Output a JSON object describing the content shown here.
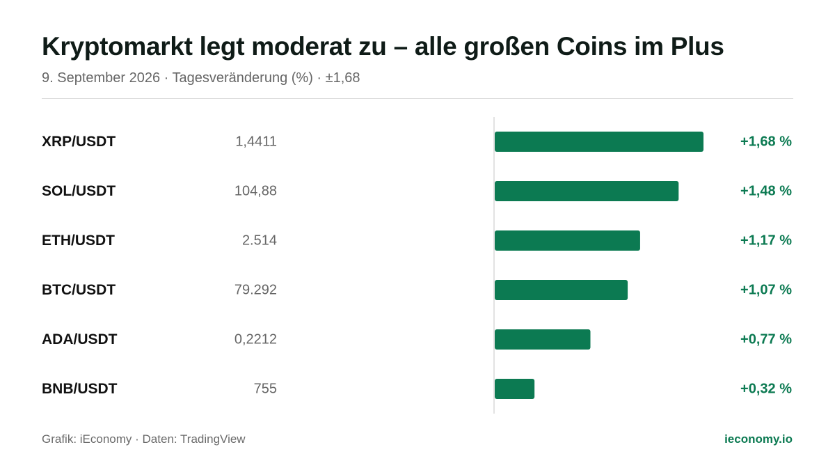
{
  "title": "Kryptomarkt legt moderat zu – alle großen Coins im Plus",
  "subtitle": "9. September 2026 · Tagesveränderung (%) · ±1,68",
  "footer": {
    "source": "Grafik: iEconomy · Daten: TradingView",
    "brand": "ieconomy.io"
  },
  "colors": {
    "bar": "#0c7a52",
    "pair_text": "#111111",
    "price_text": "#666666",
    "change_text": "#0c7a52",
    "axis": "#d9d9d9"
  },
  "chart_data": {
    "type": "bar",
    "orientation": "horizontal",
    "categories": [
      "XRP/USDT",
      "SOL/USDT",
      "ETH/USDT",
      "BTC/USDT",
      "ADA/USDT",
      "BNB/USDT"
    ],
    "prices": [
      "1,4411",
      "104,88",
      "2.514",
      "79.292",
      "0,2212",
      "755"
    ],
    "values": [
      1.68,
      1.48,
      1.17,
      1.07,
      0.77,
      0.32
    ],
    "value_labels": [
      "+1,68 %",
      "+1,48 %",
      "+1,17 %",
      "+1,07 %",
      "+0,77 %",
      "+0,32 %"
    ],
    "xlim": [
      -1.68,
      1.68
    ],
    "grid": false,
    "legend": "none"
  }
}
